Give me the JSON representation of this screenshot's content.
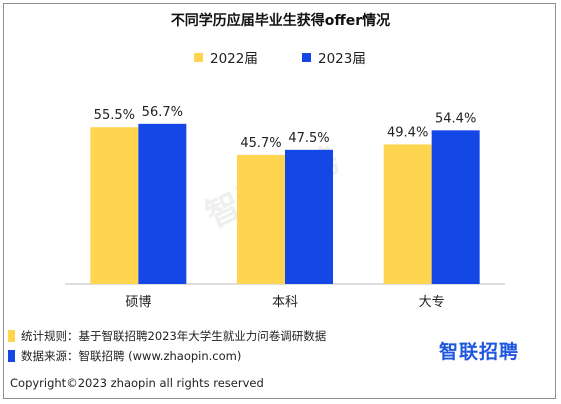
{
  "chart_data": {
    "type": "bar",
    "title": "不同学历应届毕业生获得offer情况",
    "categories": [
      "硕博",
      "本科",
      "大专"
    ],
    "series": [
      {
        "name": "2022届",
        "color": "#FFD44F",
        "values": [
          55.5,
          45.7,
          49.4
        ],
        "labels": [
          "55.5%",
          "45.7%",
          "49.4%"
        ]
      },
      {
        "name": "2023届",
        "color": "#1448E6",
        "values": [
          56.7,
          47.5,
          54.4
        ],
        "labels": [
          "56.7%",
          "47.5%",
          "54.4%"
        ]
      }
    ],
    "ylim": [
      0,
      100
    ],
    "grid": false,
    "legend": "top-center"
  },
  "watermark": "智联招聘",
  "footer": {
    "notes": [
      {
        "text": "统计规则：基于智联招聘2023年大学生就业力问卷调研数据",
        "color": "#FFD44F"
      },
      {
        "text": "数据来源：智联招聘 (www.zhaopin.com)",
        "color": "#1448E6"
      }
    ],
    "copyright": "Copyright©2023 zhaopin all rights reserved",
    "logo": "智联招聘"
  }
}
